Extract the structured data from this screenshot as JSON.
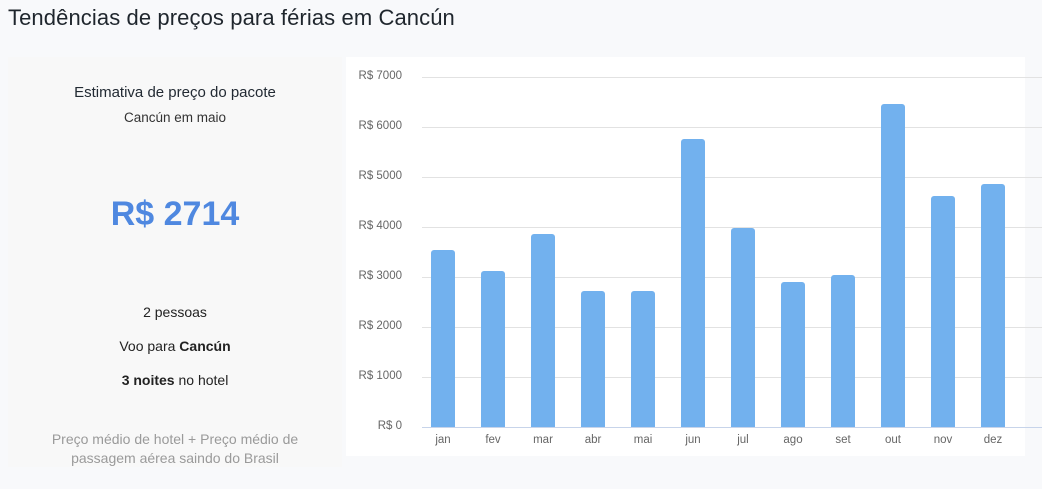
{
  "page": {
    "title": "Tendências de preços para férias em Cancún"
  },
  "summary": {
    "title": "Estimativa de preço do pacote",
    "subtitle": "Cancún em maio",
    "price": "R$ 2714",
    "people": "2 pessoas",
    "flight_prefix": "Voo para ",
    "flight_dest": "Cancún",
    "hotel_nights": "3 noites",
    "hotel_suffix": " no hotel",
    "note": "Preço médio de hotel + Preço médio de passagem aérea saindo do Brasil",
    "accent_color": "#4f88e0"
  },
  "chart_data": {
    "type": "bar",
    "title": "",
    "xlabel": "",
    "ylabel": "",
    "categories": [
      "jan",
      "fev",
      "mar",
      "abr",
      "mai",
      "jun",
      "jul",
      "ago",
      "set",
      "out",
      "nov",
      "dez"
    ],
    "values": [
      3540,
      3120,
      3860,
      2720,
      2714,
      5760,
      3980,
      2900,
      3040,
      6460,
      4620,
      4860
    ],
    "ylim": [
      0,
      7000
    ],
    "yticks": [
      0,
      1000,
      2000,
      3000,
      4000,
      5000,
      6000,
      7000
    ],
    "ytick_labels": [
      "R$ 0",
      "R$ 1000",
      "R$ 2000",
      "R$ 3000",
      "R$ 4000",
      "R$ 5000",
      "R$ 6000",
      "R$ 7000"
    ],
    "grid": true,
    "legend": "none",
    "bar_color": "#72b1ee"
  }
}
